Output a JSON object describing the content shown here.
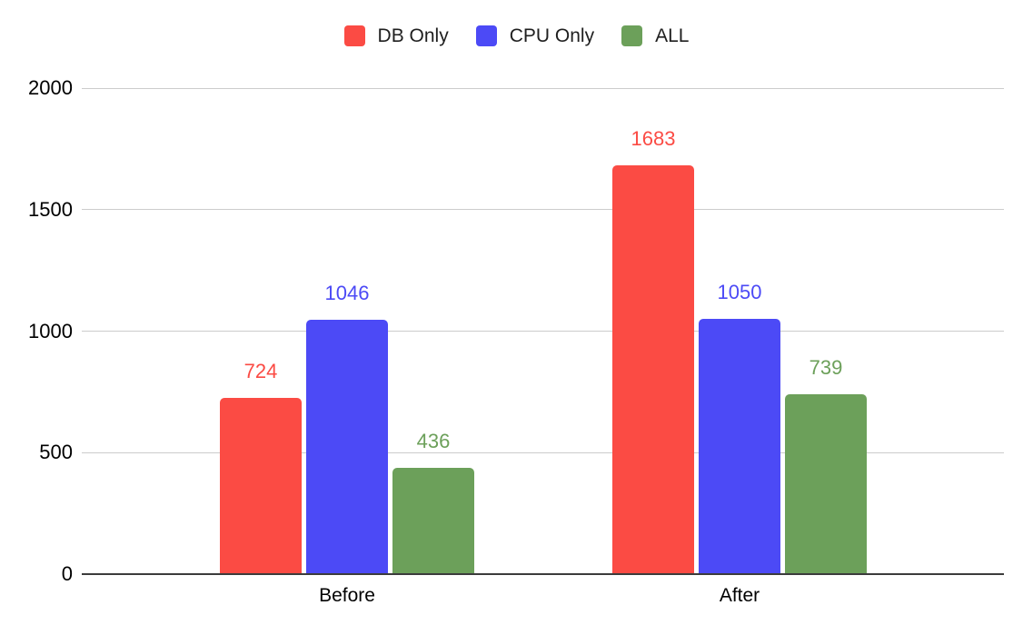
{
  "chart_data": {
    "type": "bar",
    "title": "",
    "xlabel": "",
    "ylabel": "",
    "categories": [
      "Before",
      "After"
    ],
    "series": [
      {
        "name": "DB Only",
        "color": "#FB4B44",
        "values": [
          724,
          1683
        ]
      },
      {
        "name": "CPU Only",
        "color": "#4C4AF6",
        "values": [
          1046,
          1050
        ]
      },
      {
        "name": "ALL",
        "color": "#6CA05A",
        "values": [
          436,
          739
        ]
      }
    ],
    "ylim": [
      0,
      2000
    ],
    "yticks": [
      0,
      500,
      1000,
      1500,
      2000
    ],
    "grid": true,
    "legend_position": "top",
    "value_labels": true,
    "colors": {
      "background": "#FFFFFF",
      "gridline": "#CCCCCC",
      "axis_line": "#3C3C3C",
      "tick_label": "#000000",
      "category_label": "#000000",
      "legend_text": "#1F1F1F"
    }
  }
}
